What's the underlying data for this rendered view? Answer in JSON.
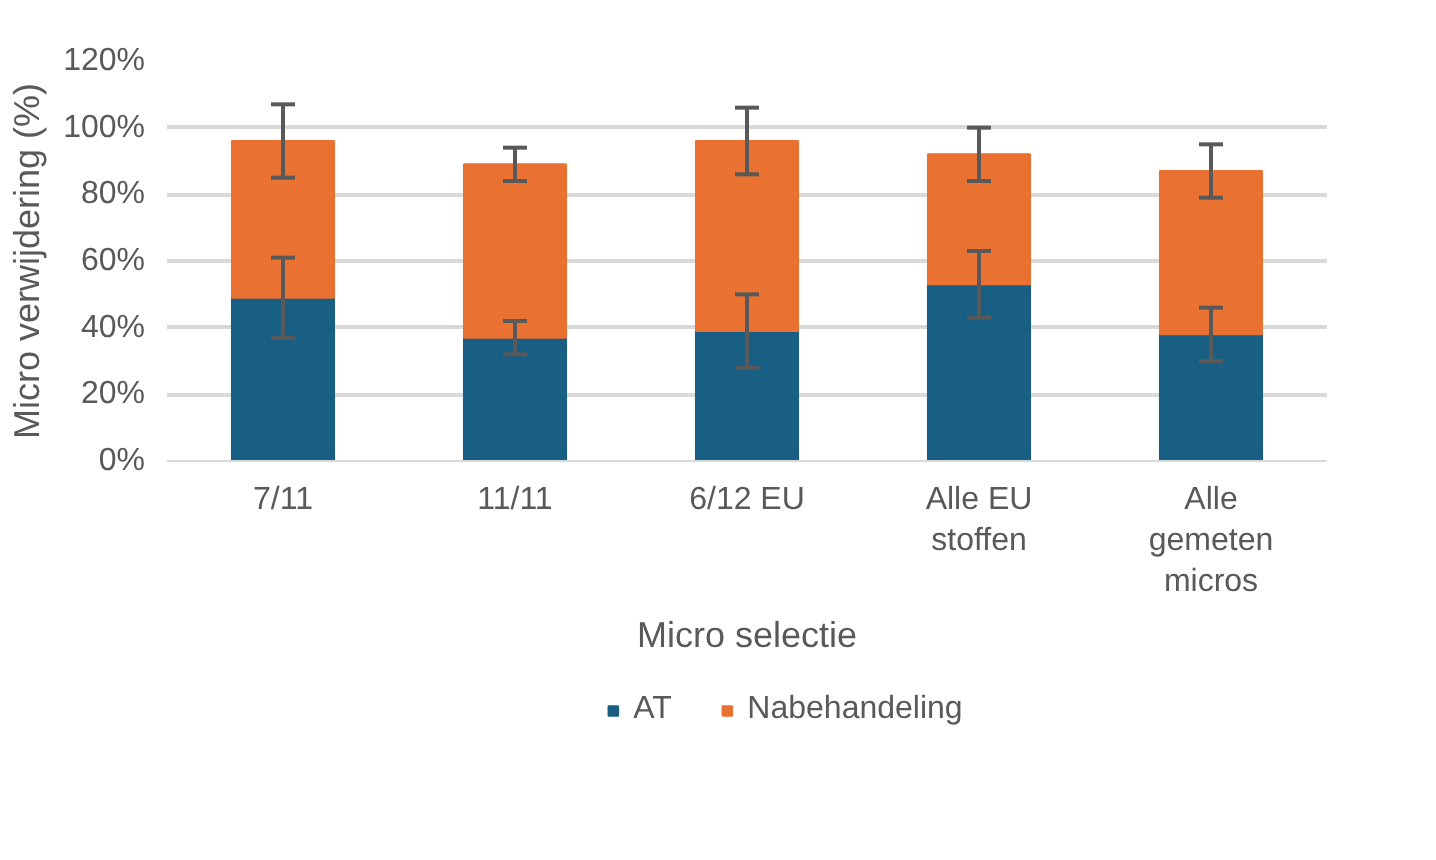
{
  "chart_data": {
    "type": "bar",
    "stacked": true,
    "categories": [
      "7/11",
      "11/11",
      "6/12 EU",
      "Alle EU stoffen",
      "Alle gemeten micros"
    ],
    "series": [
      {
        "name": "AT",
        "color": "#195e83",
        "values": [
          49,
          37,
          39,
          53,
          38
        ],
        "errors": [
          12,
          5,
          11,
          10,
          8
        ]
      },
      {
        "name": "Nabehandeling",
        "color": "#e97132",
        "values": [
          47,
          52,
          57,
          39,
          49
        ],
        "errors": [
          11,
          5,
          10,
          8,
          8
        ]
      }
    ],
    "xlabel": "Micro selectie",
    "ylabel": "Micro verwijdering (%)",
    "ylim": [
      0,
      120
    ],
    "yticks": [
      {
        "value": 0,
        "label": "0%"
      },
      {
        "value": 20,
        "label": "20%"
      },
      {
        "value": 40,
        "label": "40%"
      },
      {
        "value": 60,
        "label": "60%"
      },
      {
        "value": 80,
        "label": "80%"
      },
      {
        "value": 100,
        "label": "100%"
      },
      {
        "value": 120,
        "label": "120%"
      }
    ],
    "grid": "y",
    "legend": "bottom"
  }
}
